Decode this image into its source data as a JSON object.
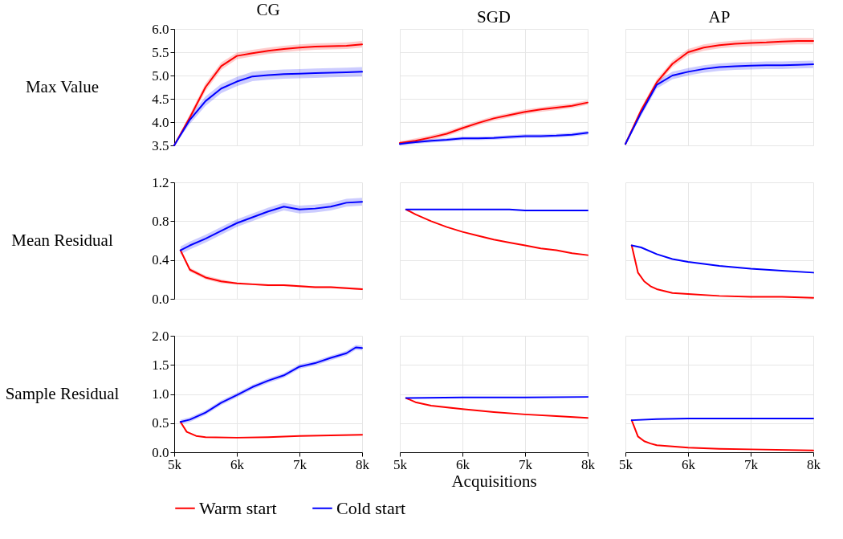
{
  "chart_data": [
    {
      "type": "line",
      "title": "CG",
      "ylabel": "Max Value",
      "xlim": [
        5000,
        8000
      ],
      "xticks": [
        5000,
        6000,
        7000,
        8000
      ],
      "ylim": [
        3.5,
        6.0
      ],
      "yticks": [
        3.5,
        {
          "value": 4,
          "label": "4.0"
        },
        4.5,
        {
          "value": 5,
          "label": "5.0"
        },
        5.5,
        {
          "value": 6,
          "label": "6.0"
        }
      ],
      "grid": true,
      "tick_labels": "y",
      "x": [
        5000,
        5250,
        5500,
        5750,
        6000,
        6250,
        6500,
        6750,
        7000,
        7250,
        7500,
        7750,
        8000
      ],
      "series": [
        {
          "color": "#ff0000",
          "values": [
            3.5,
            4.1,
            4.75,
            5.2,
            5.42,
            5.48,
            5.53,
            5.57,
            5.6,
            5.62,
            5.63,
            5.64,
            5.67
          ],
          "lower": [
            3.5,
            4.03,
            4.67,
            5.12,
            5.35,
            5.41,
            5.46,
            5.5,
            5.53,
            5.55,
            5.56,
            5.57,
            5.6
          ],
          "upper": [
            3.53,
            4.17,
            4.83,
            5.28,
            5.49,
            5.55,
            5.6,
            5.64,
            5.67,
            5.69,
            5.7,
            5.71,
            5.74
          ]
        },
        {
          "color": "#0000ff",
          "values": [
            3.5,
            4.05,
            4.45,
            4.72,
            4.87,
            4.98,
            5.01,
            5.03,
            5.04,
            5.05,
            5.06,
            5.07,
            5.08
          ],
          "lower": [
            3.5,
            3.96,
            4.35,
            4.62,
            4.77,
            4.88,
            4.91,
            4.93,
            4.94,
            4.95,
            4.96,
            4.97,
            4.98
          ],
          "upper": [
            3.53,
            4.14,
            4.55,
            4.82,
            4.97,
            5.08,
            5.11,
            5.13,
            5.14,
            5.15,
            5.16,
            5.17,
            5.18
          ]
        }
      ]
    },
    {
      "type": "line",
      "title": "SGD",
      "xlim": [
        5000,
        8000
      ],
      "xticks": [
        5000,
        6000,
        7000,
        8000
      ],
      "ylim": [
        3.5,
        6.0
      ],
      "yticks": [
        3.5,
        4,
        4.5,
        5,
        5.5,
        6
      ],
      "grid": true,
      "tick_labels": false,
      "x": [
        5000,
        5250,
        5500,
        5750,
        6000,
        6250,
        6500,
        6750,
        7000,
        7250,
        7500,
        7750,
        8000
      ],
      "series": [
        {
          "color": "#ff0000",
          "values": [
            3.55,
            3.6,
            3.67,
            3.75,
            3.87,
            3.98,
            4.08,
            4.15,
            4.22,
            4.27,
            4.31,
            4.35,
            4.42
          ],
          "lower": [
            3.51,
            3.55,
            3.62,
            3.7,
            3.82,
            3.93,
            4.03,
            4.1,
            4.17,
            4.22,
            4.26,
            4.3,
            4.37
          ],
          "upper": [
            3.59,
            3.65,
            3.72,
            3.8,
            3.92,
            4.03,
            4.13,
            4.2,
            4.27,
            4.32,
            4.36,
            4.4,
            4.47
          ]
        },
        {
          "color": "#0000ff",
          "values": [
            3.53,
            3.57,
            3.6,
            3.62,
            3.65,
            3.65,
            3.66,
            3.68,
            3.7,
            3.7,
            3.71,
            3.73,
            3.77
          ],
          "lower": [
            3.5,
            3.53,
            3.56,
            3.58,
            3.61,
            3.61,
            3.62,
            3.64,
            3.66,
            3.66,
            3.67,
            3.69,
            3.73
          ],
          "upper": [
            3.57,
            3.61,
            3.64,
            3.66,
            3.69,
            3.69,
            3.7,
            3.72,
            3.74,
            3.74,
            3.75,
            3.77,
            3.81
          ]
        }
      ]
    },
    {
      "type": "line",
      "title": "AP",
      "xlim": [
        5000,
        8000
      ],
      "xticks": [
        5000,
        6000,
        7000,
        8000
      ],
      "ylim": [
        3.5,
        6.0
      ],
      "yticks": [
        3.5,
        4,
        4.5,
        5,
        5.5,
        6
      ],
      "grid": true,
      "tick_labels": false,
      "x": [
        5000,
        5250,
        5500,
        5750,
        6000,
        6250,
        6500,
        6750,
        7000,
        7250,
        7500,
        7750,
        8000
      ],
      "series": [
        {
          "color": "#ff0000",
          "values": [
            3.53,
            4.25,
            4.85,
            5.25,
            5.5,
            5.6,
            5.65,
            5.68,
            5.7,
            5.71,
            5.73,
            5.74,
            5.74
          ],
          "lower": [
            3.5,
            4.19,
            4.78,
            5.18,
            5.43,
            5.53,
            5.58,
            5.61,
            5.63,
            5.64,
            5.66,
            5.67,
            5.67
          ],
          "upper": [
            3.56,
            4.31,
            4.92,
            5.32,
            5.57,
            5.67,
            5.72,
            5.75,
            5.77,
            5.78,
            5.8,
            5.81,
            5.81
          ]
        },
        {
          "color": "#0000ff",
          "values": [
            3.53,
            4.2,
            4.8,
            5.0,
            5.08,
            5.14,
            5.18,
            5.2,
            5.21,
            5.22,
            5.22,
            5.23,
            5.24
          ],
          "lower": [
            3.5,
            4.13,
            4.72,
            4.92,
            5.0,
            5.06,
            5.1,
            5.12,
            5.13,
            5.14,
            5.14,
            5.15,
            5.16
          ],
          "upper": [
            3.56,
            4.27,
            4.88,
            5.08,
            5.16,
            5.22,
            5.26,
            5.28,
            5.29,
            5.3,
            5.3,
            5.31,
            5.32
          ]
        }
      ]
    },
    {
      "type": "line",
      "ylabel": "Mean Residual",
      "xlim": [
        5000,
        8000
      ],
      "xticks": [
        5000,
        6000,
        7000,
        8000
      ],
      "ylim": [
        0.0,
        1.2
      ],
      "yticks": [
        {
          "value": 0,
          "label": "0.0"
        },
        0.4,
        0.8,
        1.2
      ],
      "grid": true,
      "tick_labels": "y",
      "x": [
        5100,
        5250,
        5500,
        5750,
        6000,
        6250,
        6500,
        6750,
        7000,
        7250,
        7500,
        7750,
        8000
      ],
      "series": [
        {
          "color": "#ff0000",
          "values": [
            0.5,
            0.3,
            0.22,
            0.18,
            0.16,
            0.15,
            0.14,
            0.14,
            0.13,
            0.12,
            0.12,
            0.11,
            0.1
          ],
          "lower": [
            0.48,
            0.28,
            0.2,
            0.16,
            0.15,
            0.14,
            0.13,
            0.13,
            0.12,
            0.11,
            0.11,
            0.1,
            0.09
          ],
          "upper": [
            0.52,
            0.32,
            0.24,
            0.2,
            0.17,
            0.16,
            0.15,
            0.15,
            0.14,
            0.13,
            0.13,
            0.12,
            0.11
          ]
        },
        {
          "color": "#0000ff",
          "values": [
            0.5,
            0.55,
            0.62,
            0.7,
            0.78,
            0.84,
            0.9,
            0.95,
            0.92,
            0.93,
            0.95,
            0.99,
            1.0
          ],
          "lower": [
            0.46,
            0.51,
            0.58,
            0.66,
            0.74,
            0.8,
            0.86,
            0.91,
            0.88,
            0.89,
            0.91,
            0.95,
            0.96
          ],
          "upper": [
            0.54,
            0.59,
            0.66,
            0.74,
            0.82,
            0.88,
            0.94,
            0.99,
            0.96,
            0.97,
            0.99,
            1.03,
            1.04
          ]
        }
      ]
    },
    {
      "type": "line",
      "xlim": [
        5000,
        8000
      ],
      "xticks": [
        5000,
        6000,
        7000,
        8000
      ],
      "ylim": [
        0.0,
        1.2
      ],
      "yticks": [
        0,
        0.4,
        0.8,
        1.2
      ],
      "grid": true,
      "tick_labels": false,
      "x": [
        5100,
        5250,
        5500,
        5750,
        6000,
        6250,
        6500,
        6750,
        7000,
        7250,
        7500,
        7750,
        8000
      ],
      "series": [
        {
          "color": "#ff0000",
          "values": [
            0.92,
            0.87,
            0.8,
            0.74,
            0.69,
            0.65,
            0.61,
            0.58,
            0.55,
            0.52,
            0.5,
            0.47,
            0.45
          ]
        },
        {
          "color": "#0000ff",
          "values": [
            0.92,
            0.92,
            0.92,
            0.92,
            0.92,
            0.92,
            0.92,
            0.92,
            0.91,
            0.91,
            0.91,
            0.91,
            0.91
          ]
        }
      ]
    },
    {
      "type": "line",
      "xlim": [
        5000,
        8000
      ],
      "xticks": [
        5000,
        6000,
        7000,
        8000
      ],
      "ylim": [
        0.0,
        1.2
      ],
      "yticks": [
        0,
        0.4,
        0.8,
        1.2
      ],
      "grid": true,
      "tick_labels": false,
      "series": [
        {
          "color": "#ff0000",
          "x": [
            5100,
            5200,
            5300,
            5400,
            5500,
            5750,
            6000,
            6500,
            7000,
            7500,
            8000
          ],
          "values": [
            0.55,
            0.27,
            0.18,
            0.13,
            0.1,
            0.06,
            0.05,
            0.03,
            0.02,
            0.02,
            0.01
          ]
        },
        {
          "color": "#0000ff",
          "x": [
            5100,
            5250,
            5500,
            5750,
            6000,
            6500,
            7000,
            7500,
            8000
          ],
          "values": [
            0.55,
            0.53,
            0.46,
            0.41,
            0.38,
            0.34,
            0.31,
            0.29,
            0.27
          ]
        }
      ]
    },
    {
      "type": "line",
      "ylabel": "Sample Residual",
      "xlim": [
        5000,
        8000
      ],
      "xticks": [
        {
          "value": 5000,
          "label": "5k"
        },
        {
          "value": 6000,
          "label": "6k"
        },
        {
          "value": 7000,
          "label": "7k"
        },
        {
          "value": 8000,
          "label": "8k"
        }
      ],
      "ylim": [
        0.0,
        2.0
      ],
      "yticks": [
        {
          "value": 0,
          "label": "0.0"
        },
        {
          "value": 0.5,
          "label": "0.5"
        },
        {
          "value": 1,
          "label": "1.0"
        },
        {
          "value": 1.5,
          "label": "1.5"
        },
        {
          "value": 2,
          "label": "2.0"
        }
      ],
      "grid": true,
      "series": [
        {
          "color": "#ff0000",
          "x": [
            5100,
            5200,
            5350,
            5500,
            6000,
            6500,
            7000,
            7500,
            8000
          ],
          "values": [
            0.52,
            0.35,
            0.28,
            0.26,
            0.25,
            0.26,
            0.28,
            0.29,
            0.3
          ]
        },
        {
          "color": "#0000ff",
          "x": [
            5100,
            5250,
            5500,
            5750,
            6000,
            6250,
            6500,
            6750,
            7000,
            7250,
            7500,
            7750,
            7900,
            8000
          ],
          "values": [
            0.52,
            0.56,
            0.68,
            0.85,
            0.98,
            1.12,
            1.23,
            1.32,
            1.47,
            1.53,
            1.62,
            1.7,
            1.8,
            1.79
          ],
          "lower": [
            0.48,
            0.52,
            0.64,
            0.81,
            0.94,
            1.08,
            1.19,
            1.28,
            1.43,
            1.49,
            1.58,
            1.66,
            1.76,
            1.75
          ],
          "upper": [
            0.56,
            0.6,
            0.72,
            0.89,
            1.02,
            1.16,
            1.27,
            1.36,
            1.51,
            1.57,
            1.66,
            1.74,
            1.84,
            1.83
          ]
        }
      ]
    },
    {
      "type": "line",
      "xlabel": "Acquisitions",
      "legend": "bottom",
      "xlim": [
        5000,
        8000
      ],
      "xticks": [
        {
          "value": 5000,
          "label": "5k"
        },
        {
          "value": 6000,
          "label": "6k"
        },
        {
          "value": 7000,
          "label": "7k"
        },
        {
          "value": 8000,
          "label": "8k"
        }
      ],
      "ylim": [
        0.0,
        2.0
      ],
      "yticks": [
        0,
        0.5,
        1,
        1.5,
        2
      ],
      "grid": true,
      "tick_labels": "x",
      "series": [
        {
          "name": "Warm start",
          "color": "#ff0000",
          "x": [
            5100,
            5250,
            5500,
            6000,
            6500,
            7000,
            7500,
            8000
          ],
          "values": [
            0.93,
            0.86,
            0.8,
            0.74,
            0.69,
            0.65,
            0.62,
            0.59
          ]
        },
        {
          "name": "Cold start",
          "color": "#0000ff",
          "x": [
            5100,
            6000,
            7000,
            8000
          ],
          "values": [
            0.93,
            0.94,
            0.94,
            0.95
          ]
        }
      ]
    },
    {
      "type": "line",
      "xlim": [
        5000,
        8000
      ],
      "xticks": [
        {
          "value": 5000,
          "label": "5k"
        },
        {
          "value": 6000,
          "label": "6k"
        },
        {
          "value": 7000,
          "label": "7k"
        },
        {
          "value": 8000,
          "label": "8k"
        }
      ],
      "ylim": [
        0.0,
        2.0
      ],
      "yticks": [
        0,
        0.5,
        1,
        1.5,
        2
      ],
      "grid": true,
      "tick_labels": "x",
      "series": [
        {
          "color": "#ff0000",
          "x": [
            5100,
            5200,
            5300,
            5400,
            5500,
            6000,
            6500,
            7000,
            8000
          ],
          "values": [
            0.55,
            0.27,
            0.19,
            0.15,
            0.12,
            0.08,
            0.06,
            0.05,
            0.03
          ]
        },
        {
          "color": "#0000ff",
          "x": [
            5100,
            5500,
            6000,
            8000
          ],
          "values": [
            0.55,
            0.57,
            0.58,
            0.58
          ]
        }
      ]
    }
  ]
}
